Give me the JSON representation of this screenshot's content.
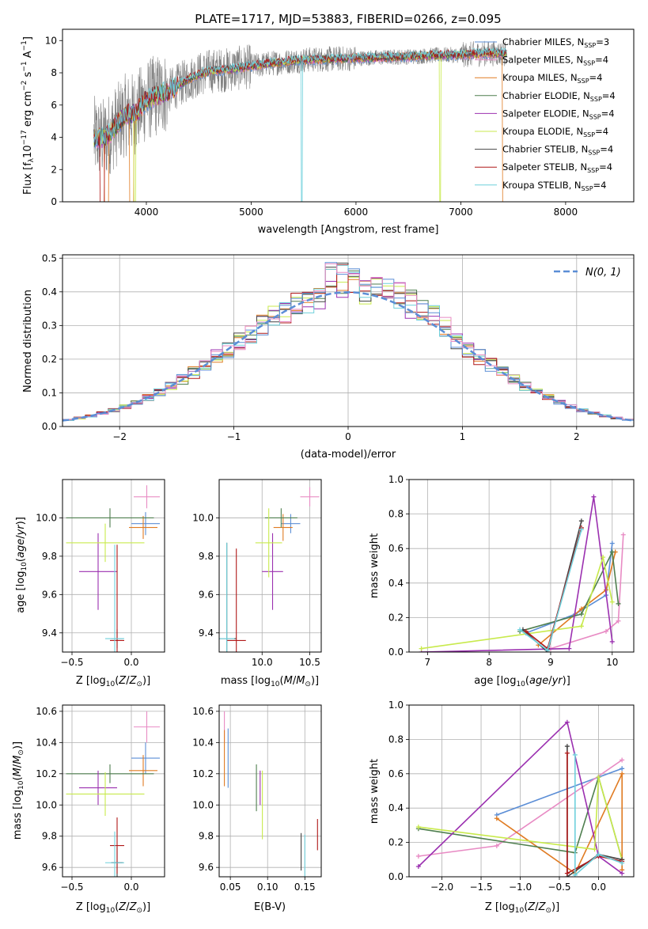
{
  "figure_title": "PLATE=1717, MJD=53883, FIBERID=0266, z=0.095",
  "colors": {
    "chabrier_miles": "#5b8ed6",
    "salpeter_miles": "#e88bc4",
    "kroupa_miles": "#e07b22",
    "chabrier_elodie": "#4f7f4f",
    "salpeter_elodie": "#9b30b0",
    "kroupa_elodie": "#c8ea4c",
    "chabrier_stelib": "#444444",
    "salpeter_stelib": "#b01818",
    "kroupa_stelib": "#6fd0dc",
    "data_gray": "#808080",
    "normal_curve": "#5b8ed6"
  },
  "chart_data": [
    {
      "id": "spectrum",
      "type": "line",
      "title": "PLATE=1717, MJD=53883, FIBERID=0266, z=0.095",
      "xlabel": "wavelength [Angstrom, rest frame]",
      "xlim": [
        3200,
        8650
      ],
      "ylim": [
        0,
        10.7
      ],
      "xticks": [
        4000,
        5000,
        6000,
        7000,
        8000
      ],
      "yticks": [
        0,
        2,
        4,
        6,
        8,
        10
      ],
      "legend_position": "top-right",
      "legend": [
        {
          "key": "chabrier_miles",
          "model": "Chabrier MILES",
          "nssp": "3"
        },
        {
          "key": "salpeter_miles",
          "model": "Salpeter MILES",
          "nssp": "4"
        },
        {
          "key": "kroupa_miles",
          "model": "Kroupa MILES",
          "nssp": "4"
        },
        {
          "key": "chabrier_elodie",
          "model": "Chabrier ELODIE",
          "nssp": "4"
        },
        {
          "key": "salpeter_elodie",
          "model": "Salpeter ELODIE",
          "nssp": "4"
        },
        {
          "key": "kroupa_elodie",
          "model": "Kroupa ELODIE",
          "nssp": "4"
        },
        {
          "key": "chabrier_stelib",
          "model": "Chabrier STELIB",
          "nssp": "4"
        },
        {
          "key": "salpeter_stelib",
          "model": "Salpeter STELIB",
          "nssp": "4"
        },
        {
          "key": "kroupa_stelib",
          "model": "Kroupa STELIB",
          "nssp": "4"
        }
      ],
      "spectrum_anchors": [
        [
          3500,
          4.0
        ],
        [
          3600,
          3.9
        ],
        [
          3700,
          4.6
        ],
        [
          3800,
          5.4
        ],
        [
          3900,
          5.5
        ],
        [
          4000,
          6.3
        ],
        [
          4100,
          6.6
        ],
        [
          4200,
          6.8
        ],
        [
          4300,
          7.2
        ],
        [
          4400,
          7.6
        ],
        [
          4500,
          7.9
        ],
        [
          4600,
          8.1
        ],
        [
          4800,
          8.2
        ],
        [
          5000,
          8.4
        ],
        [
          5200,
          8.6
        ],
        [
          5500,
          8.8
        ],
        [
          6000,
          8.9
        ],
        [
          6500,
          9.0
        ],
        [
          6800,
          9.1
        ],
        [
          7000,
          9.1
        ],
        [
          7200,
          9.2
        ],
        [
          7440,
          9.2
        ]
      ]
    },
    {
      "id": "residuals",
      "type": "histogram",
      "xlabel": "(data-model)/error",
      "ylabel": "Normed distribution",
      "xlim": [
        -2.5,
        2.5
      ],
      "ylim": [
        0,
        0.51
      ],
      "xticks": [
        -2,
        -1,
        0,
        1,
        2
      ],
      "yticks": [
        0.0,
        0.1,
        0.2,
        0.3,
        0.4,
        0.5
      ],
      "legend_position": "top-right",
      "curve_label": "N(0,1)",
      "bin_width": 0.1
    },
    {
      "id": "age_vs_Z",
      "type": "errorbar",
      "xlim": [
        -0.58,
        0.28
      ],
      "ylim": [
        9.3,
        10.2
      ],
      "xticks": [
        -0.5,
        0.0
      ],
      "yticks": [
        9.4,
        9.6,
        9.8,
        10.0
      ],
      "points": [
        {
          "key": "chabrier_miles",
          "x": 0.12,
          "xerr": 0.12,
          "y": 9.97,
          "yerr": 0.06
        },
        {
          "key": "salpeter_miles",
          "x": 0.13,
          "xerr": 0.11,
          "y": 10.11,
          "yerr": 0.06
        },
        {
          "key": "kroupa_miles",
          "x": 0.1,
          "xerr": 0.12,
          "y": 9.95,
          "yerr": 0.06
        },
        {
          "key": "chabrier_elodie",
          "x": -0.18,
          "xerr": 0.37,
          "y": 10.0,
          "yerr": 0.05
        },
        {
          "key": "salpeter_elodie",
          "x": -0.28,
          "xerr": 0.16,
          "y": 9.72,
          "yerr": 0.2
        },
        {
          "key": "kroupa_elodie",
          "x": -0.22,
          "xerr": 0.33,
          "y": 9.87,
          "yerr": 0.1
        },
        {
          "key": "chabrier_stelib",
          "x": -0.12,
          "xerr": 0.05,
          "y": 9.37,
          "yerr": 0.05
        },
        {
          "key": "salpeter_stelib",
          "x": -0.12,
          "xerr": 0.06,
          "y": 9.36,
          "yerr": 0.5
        },
        {
          "key": "kroupa_stelib",
          "x": -0.14,
          "xerr": 0.08,
          "y": 9.37,
          "yerr": 0.49
        }
      ]
    },
    {
      "id": "age_vs_mass",
      "type": "errorbar",
      "xlim": [
        9.55,
        10.62
      ],
      "ylim": [
        9.3,
        10.2
      ],
      "xticks": [
        10.0,
        10.5
      ],
      "yticks": [
        9.4,
        9.6,
        9.8,
        10.0
      ],
      "points": [
        {
          "key": "chabrier_miles",
          "x": 10.3,
          "xerr": 0.1,
          "y": 9.97,
          "yerr": 0.05
        },
        {
          "key": "salpeter_miles",
          "x": 10.5,
          "xerr": 0.1,
          "y": 10.11,
          "yerr": 0.05
        },
        {
          "key": "kroupa_miles",
          "x": 10.22,
          "xerr": 0.1,
          "y": 9.95,
          "yerr": 0.07
        },
        {
          "key": "chabrier_elodie",
          "x": 10.2,
          "xerr": 0.17,
          "y": 10.0,
          "yerr": 0.05
        },
        {
          "key": "salpeter_elodie",
          "x": 10.11,
          "xerr": 0.11,
          "y": 9.72,
          "yerr": 0.2
        },
        {
          "key": "kroupa_elodie",
          "x": 10.07,
          "xerr": 0.14,
          "y": 9.87,
          "yerr": 0.18
        },
        {
          "key": "chabrier_stelib",
          "x": 9.63,
          "xerr": 0.1,
          "y": 9.37,
          "yerr": 0.5
        },
        {
          "key": "salpeter_stelib",
          "x": 9.73,
          "xerr": 0.1,
          "y": 9.36,
          "yerr": 0.48
        },
        {
          "key": "kroupa_stelib",
          "x": 9.63,
          "xerr": 0.08,
          "y": 9.37,
          "yerr": 0.5
        }
      ]
    },
    {
      "id": "weight_vs_age",
      "type": "line",
      "xlabel": "age  [log10(age/yr)]",
      "ylabel": "mass weight",
      "xlim": [
        6.7,
        10.35
      ],
      "ylim": [
        0,
        1.0
      ],
      "xticks": [
        7,
        8,
        9,
        10
      ],
      "yticks": [
        0.0,
        0.2,
        0.4,
        0.6,
        0.8,
        1.0
      ],
      "series": [
        {
          "key": "chabrier_miles",
          "points": [
            [
              8.6,
              0.11
            ],
            [
              9.4,
              0.22
            ],
            [
              9.9,
              0.33
            ],
            [
              10.0,
              0.63
            ]
          ]
        },
        {
          "key": "salpeter_miles",
          "points": [
            [
              9.0,
              0.02
            ],
            [
              9.9,
              0.12
            ],
            [
              10.1,
              0.18
            ],
            [
              10.18,
              0.68
            ]
          ]
        },
        {
          "key": "kroupa_miles",
          "points": [
            [
              8.8,
              0.04
            ],
            [
              9.5,
              0.25
            ],
            [
              9.9,
              0.36
            ],
            [
              10.05,
              0.58
            ]
          ]
        },
        {
          "key": "chabrier_elodie",
          "points": [
            [
              8.5,
              0.12
            ],
            [
              9.5,
              0.22
            ],
            [
              10.0,
              0.58
            ],
            [
              10.1,
              0.28
            ]
          ]
        },
        {
          "key": "salpeter_elodie",
          "points": [
            [
              6.9,
              0.0
            ],
            [
              9.3,
              0.02
            ],
            [
              9.7,
              0.9
            ],
            [
              10.0,
              0.06
            ]
          ]
        },
        {
          "key": "kroupa_elodie",
          "points": [
            [
              6.9,
              0.02
            ],
            [
              9.5,
              0.15
            ],
            [
              9.85,
              0.55
            ],
            [
              10.0,
              0.29
            ]
          ]
        },
        {
          "key": "chabrier_stelib",
          "points": [
            [
              8.55,
              0.13
            ],
            [
              8.95,
              0.0
            ],
            [
              9.5,
              0.76
            ]
          ]
        },
        {
          "key": "salpeter_stelib",
          "points": [
            [
              8.6,
              0.12
            ],
            [
              8.95,
              0.02
            ],
            [
              9.5,
              0.72
            ]
          ]
        },
        {
          "key": "kroupa_stelib",
          "points": [
            [
              8.5,
              0.13
            ],
            [
              8.95,
              0.01
            ],
            [
              9.5,
              0.71
            ]
          ]
        }
      ]
    },
    {
      "id": "mass_vs_Z",
      "type": "errorbar",
      "xlim": [
        -0.58,
        0.28
      ],
      "ylim": [
        9.54,
        10.64
      ],
      "xticks": [
        -0.5,
        0.0
      ],
      "yticks": [
        9.6,
        9.8,
        10.0,
        10.2,
        10.4,
        10.6
      ],
      "points": [
        {
          "key": "chabrier_miles",
          "x": 0.12,
          "xerr": 0.12,
          "y": 10.3,
          "yerr": 0.1
        },
        {
          "key": "salpeter_miles",
          "x": 0.13,
          "xerr": 0.11,
          "y": 10.5,
          "yerr": 0.1
        },
        {
          "key": "kroupa_miles",
          "x": 0.1,
          "xerr": 0.12,
          "y": 10.22,
          "yerr": 0.1
        },
        {
          "key": "chabrier_elodie",
          "x": -0.18,
          "xerr": 0.37,
          "y": 10.2,
          "yerr": 0.06
        },
        {
          "key": "salpeter_elodie",
          "x": -0.28,
          "xerr": 0.16,
          "y": 10.11,
          "yerr": 0.11
        },
        {
          "key": "kroupa_elodie",
          "x": -0.22,
          "xerr": 0.33,
          "y": 10.07,
          "yerr": 0.14
        },
        {
          "key": "chabrier_stelib",
          "x": -0.12,
          "xerr": 0.05,
          "y": 9.63,
          "yerr": 0.1
        },
        {
          "key": "salpeter_stelib",
          "x": -0.12,
          "xerr": 0.06,
          "y": 9.74,
          "yerr": 0.18
        },
        {
          "key": "kroupa_stelib",
          "x": -0.14,
          "xerr": 0.08,
          "y": 9.63,
          "yerr": 0.2
        }
      ]
    },
    {
      "id": "mass_vs_ebv",
      "type": "errorbar",
      "xlabel": "E(B-V)",
      "xlim": [
        0.035,
        0.172
      ],
      "ylim": [
        9.54,
        10.64
      ],
      "xticks": [
        0.05,
        0.1,
        0.15
      ],
      "yticks": [
        9.6,
        9.8,
        10.0,
        10.2,
        10.4,
        10.6
      ],
      "points": [
        {
          "key": "chabrier_miles",
          "x": 0.047,
          "xerr": 0,
          "y": 10.3,
          "yerr": 0.19
        },
        {
          "key": "salpeter_miles",
          "x": 0.042,
          "xerr": 0,
          "y": 10.5,
          "yerr": 0.1
        },
        {
          "key": "kroupa_miles",
          "x": 0.042,
          "xerr": 0,
          "y": 10.3,
          "yerr": 0.18
        },
        {
          "key": "chabrier_elodie",
          "x": 0.085,
          "xerr": 0,
          "y": 10.11,
          "yerr": 0.15
        },
        {
          "key": "salpeter_elodie",
          "x": 0.09,
          "xerr": 0,
          "y": 10.11,
          "yerr": 0.11
        },
        {
          "key": "kroupa_elodie",
          "x": 0.093,
          "xerr": 0,
          "y": 10.0,
          "yerr": 0.22
        },
        {
          "key": "chabrier_stelib",
          "x": 0.145,
          "xerr": 0,
          "y": 9.7,
          "yerr": 0.12
        },
        {
          "key": "salpeter_stelib",
          "x": 0.167,
          "xerr": 0,
          "y": 9.81,
          "yerr": 0.1
        },
        {
          "key": "kroupa_stelib",
          "x": 0.15,
          "xerr": 0,
          "y": 9.63,
          "yerr": 0.18
        }
      ]
    },
    {
      "id": "weight_vs_Z",
      "type": "line",
      "ylabel": "mass weight",
      "xlim": [
        -2.42,
        0.45
      ],
      "ylim": [
        0,
        1.0
      ],
      "xticks": [
        -2.0,
        -1.5,
        -1.0,
        -0.5,
        0.0
      ],
      "yticks": [
        0.0,
        0.2,
        0.4,
        0.6,
        0.8,
        1.0
      ],
      "series": [
        {
          "key": "chabrier_miles",
          "points": [
            [
              -1.3,
              0.36
            ],
            [
              0.0,
              0.58
            ],
            [
              0.3,
              0.63
            ]
          ]
        },
        {
          "key": "salpeter_miles",
          "points": [
            [
              -2.3,
              0.12
            ],
            [
              -1.3,
              0.18
            ],
            [
              0.3,
              0.68
            ]
          ]
        },
        {
          "key": "kroupa_miles",
          "points": [
            [
              -1.3,
              0.34
            ],
            [
              -0.3,
              0.02
            ],
            [
              0.3,
              0.6
            ],
            [
              0.3,
              0.04
            ]
          ]
        },
        {
          "key": "chabrier_elodie",
          "points": [
            [
              -2.3,
              0.28
            ],
            [
              -0.3,
              0.14
            ],
            [
              0.0,
              0.58
            ],
            [
              0.3,
              0.1
            ]
          ]
        },
        {
          "key": "salpeter_elodie",
          "points": [
            [
              -2.3,
              0.06
            ],
            [
              -0.4,
              0.9
            ],
            [
              0.0,
              0.12
            ],
            [
              0.3,
              0.02
            ]
          ]
        },
        {
          "key": "kroupa_elodie",
          "points": [
            [
              -2.3,
              0.29
            ],
            [
              -0.05,
              0.16
            ],
            [
              0.0,
              0.58
            ],
            [
              0.3,
              0.1
            ]
          ]
        },
        {
          "key": "chabrier_stelib",
          "points": [
            [
              -0.4,
              0.76
            ],
            [
              -0.4,
              0.0
            ],
            [
              0.0,
              0.13
            ],
            [
              0.3,
              0.1
            ]
          ]
        },
        {
          "key": "salpeter_stelib",
          "points": [
            [
              -0.4,
              0.72
            ],
            [
              -0.4,
              0.02
            ],
            [
              0.0,
              0.12
            ],
            [
              0.3,
              0.09
            ]
          ]
        },
        {
          "key": "kroupa_stelib",
          "points": [
            [
              -0.3,
              0.71
            ],
            [
              -0.3,
              0.01
            ],
            [
              0.0,
              0.13
            ],
            [
              0.3,
              0.08
            ]
          ]
        }
      ]
    }
  ]
}
